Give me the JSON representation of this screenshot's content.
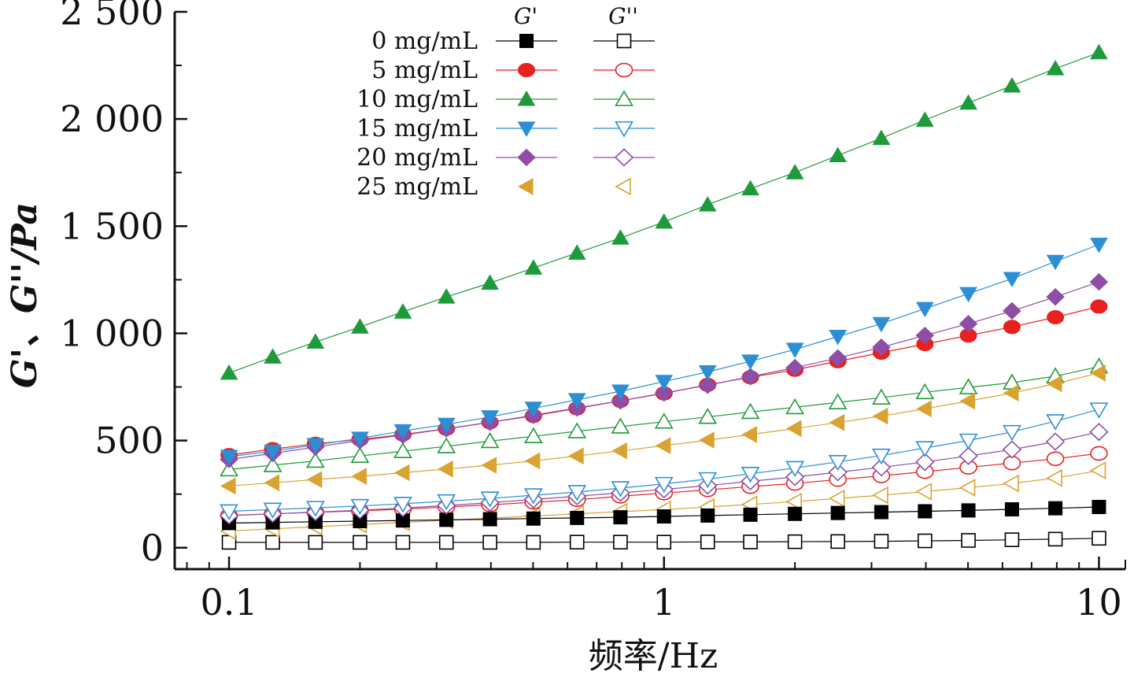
{
  "chart_data": {
    "type": "line",
    "xlabel": "频率/Hz",
    "ylabel": "G'、G''/Pa",
    "xscale": "log",
    "xlim": [
      0.075,
      11.5
    ],
    "ylim": [
      -100,
      2500
    ],
    "xticks": [
      {
        "value": 0.1,
        "label": "0.1"
      },
      {
        "value": 1,
        "label": "1"
      },
      {
        "value": 10,
        "label": "10"
      }
    ],
    "yticks": [
      {
        "value": 0,
        "label": "0"
      },
      {
        "value": 500,
        "label": "500"
      },
      {
        "value": 1000,
        "label": "1 000"
      },
      {
        "value": 1500,
        "label": "1 500"
      },
      {
        "value": 2000,
        "label": "2 000"
      },
      {
        "value": 2500,
        "label": "2 500"
      }
    ],
    "legend": {
      "position": "top-left",
      "col_headers": [
        "G'",
        "G''"
      ]
    },
    "x": [
      0.1,
      0.126,
      0.158,
      0.2,
      0.251,
      0.316,
      0.398,
      0.501,
      0.631,
      0.794,
      1.0,
      1.26,
      1.58,
      2.0,
      2.51,
      3.16,
      3.98,
      5.01,
      6.31,
      7.94,
      10.0
    ],
    "series": [
      {
        "name": "0 mg/mL",
        "kind": "G'",
        "color": "#000000",
        "marker": "square",
        "filled": true,
        "values": [
          115,
          118,
          121,
          124,
          127,
          130,
          133,
          136,
          139,
          142,
          146,
          150,
          154,
          158,
          162,
          166,
          170,
          174,
          179,
          184,
          190
        ]
      },
      {
        "name": "0 mg/mL",
        "kind": "G''",
        "color": "#000000",
        "marker": "square",
        "filled": false,
        "values": [
          25,
          25,
          25,
          25,
          25,
          25,
          25,
          25,
          26,
          26,
          26,
          27,
          27,
          28,
          29,
          30,
          32,
          34,
          37,
          40,
          44
        ]
      },
      {
        "name": "5 mg/mL",
        "kind": "G'",
        "color": "#e8201e",
        "marker": "circle",
        "filled": true,
        "values": [
          432,
          460,
          485,
          505,
          528,
          555,
          585,
          615,
          650,
          685,
          720,
          760,
          795,
          830,
          870,
          910,
          950,
          990,
          1030,
          1075,
          1125
        ]
      },
      {
        "name": "5 mg/mL",
        "kind": "G''",
        "color": "#e8201e",
        "marker": "circle",
        "filled": false,
        "values": [
          150,
          158,
          165,
          172,
          180,
          190,
          200,
          212,
          224,
          240,
          255,
          270,
          285,
          300,
          318,
          335,
          355,
          375,
          395,
          415,
          440
        ]
      },
      {
        "name": "10 mg/mL",
        "kind": "G'",
        "color": "#1f9a3a",
        "marker": "triangle-up",
        "filled": true,
        "values": [
          815,
          890,
          960,
          1030,
          1100,
          1170,
          1235,
          1305,
          1375,
          1445,
          1520,
          1600,
          1675,
          1750,
          1830,
          1910,
          1995,
          2075,
          2155,
          2235,
          2310
        ]
      },
      {
        "name": "10 mg/mL",
        "kind": "G''",
        "color": "#1f9a3a",
        "marker": "triangle-up",
        "filled": false,
        "values": [
          365,
          385,
          405,
          428,
          450,
          473,
          497,
          520,
          543,
          565,
          588,
          610,
          633,
          655,
          678,
          700,
          725,
          748,
          770,
          800,
          845
        ]
      },
      {
        "name": "15 mg/mL",
        "kind": "G'",
        "color": "#2c8fd4",
        "marker": "triangle-down",
        "filled": true,
        "values": [
          425,
          450,
          480,
          510,
          545,
          575,
          610,
          650,
          690,
          730,
          775,
          820,
          870,
          925,
          985,
          1045,
          1115,
          1185,
          1255,
          1335,
          1415
        ]
      },
      {
        "name": "15 mg/mL",
        "kind": "G''",
        "color": "#2c8fd4",
        "marker": "triangle-down",
        "filled": false,
        "values": [
          170,
          178,
          186,
          195,
          205,
          217,
          230,
          245,
          260,
          278,
          298,
          320,
          345,
          372,
          400,
          430,
          465,
          500,
          540,
          590,
          645
        ]
      },
      {
        "name": "20 mg/mL",
        "kind": "G'",
        "color": "#8e4da6",
        "marker": "diamond",
        "filled": true,
        "values": [
          412,
          440,
          470,
          500,
          525,
          555,
          585,
          618,
          652,
          685,
          722,
          758,
          798,
          840,
          885,
          935,
          990,
          1045,
          1105,
          1170,
          1240
        ]
      },
      {
        "name": "20 mg/mL",
        "kind": "G''",
        "color": "#8e4da6",
        "marker": "diamond",
        "filled": false,
        "values": [
          150,
          158,
          166,
          175,
          185,
          197,
          210,
          225,
          240,
          256,
          272,
          290,
          310,
          330,
          352,
          375,
          400,
          428,
          458,
          495,
          540
        ]
      },
      {
        "name": "25 mg/mL",
        "kind": "G'",
        "color": "#d9a332",
        "marker": "triangle-left",
        "filled": true,
        "values": [
          288,
          303,
          318,
          333,
          350,
          367,
          385,
          405,
          428,
          452,
          476,
          502,
          528,
          556,
          584,
          614,
          648,
          684,
          722,
          765,
          815
        ]
      },
      {
        "name": "25 mg/mL",
        "kind": "G''",
        "color": "#d9a332",
        "marker": "triangle-left",
        "filled": false,
        "values": [
          78,
          88,
          98,
          108,
          118,
          128,
          138,
          148,
          158,
          168,
          178,
          190,
          202,
          215,
          230,
          245,
          262,
          280,
          300,
          325,
          360
        ]
      }
    ]
  }
}
